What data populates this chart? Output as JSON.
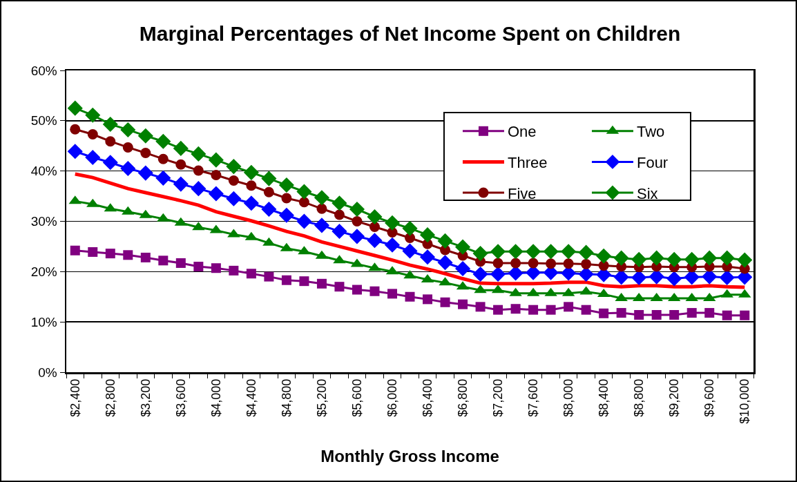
{
  "chart_data": {
    "type": "line",
    "title": "Marginal Percentages of Net Income Spent on Children",
    "xlabel": "Monthly Gross Income",
    "categories": [
      "$2,400",
      null,
      "$2,800",
      null,
      "$3,200",
      null,
      "$3,600",
      null,
      "$4,000",
      null,
      "$4,400",
      null,
      "$4,800",
      null,
      "$5,200",
      null,
      "$5,600",
      null,
      "$6,000",
      null,
      "$6,400",
      null,
      "$6,800",
      null,
      "$7,200",
      null,
      "$7,600",
      null,
      "$8,000",
      null,
      "$8,400",
      null,
      "$8,800",
      null,
      "$9,200",
      null,
      "$9,600",
      null,
      "$10,000"
    ],
    "ylim": [
      0,
      60
    ],
    "yticks": [
      {
        "value": 0,
        "label": "0%"
      },
      {
        "value": 10,
        "label": "10%"
      },
      {
        "value": 20,
        "label": "20%"
      },
      {
        "value": 30,
        "label": "30%"
      },
      {
        "value": 40,
        "label": "40%"
      },
      {
        "value": 50,
        "label": "50%"
      },
      {
        "value": 60,
        "label": "60%"
      }
    ],
    "grid": "y",
    "legend": "top right",
    "series": [
      {
        "name": "One",
        "color": "#800080",
        "marker": "square",
        "values": [
          24.2,
          23.9,
          23.6,
          23.3,
          22.8,
          22.2,
          21.7,
          21.0,
          20.7,
          20.2,
          19.6,
          19.0,
          18.3,
          18.1,
          17.6,
          17.0,
          16.4,
          16.1,
          15.6,
          15.0,
          14.5,
          13.9,
          13.5,
          13.0,
          12.4,
          12.6,
          12.4,
          12.4,
          13.0,
          12.4,
          11.7,
          11.8,
          11.4,
          11.4,
          11.4,
          11.8,
          11.8,
          11.3,
          11.3
        ]
      },
      {
        "name": "Two",
        "color": "#008000",
        "marker": "triangle",
        "values": [
          34.0,
          33.4,
          32.5,
          31.9,
          31.2,
          30.5,
          29.7,
          28.8,
          28.2,
          27.4,
          26.8,
          25.7,
          24.6,
          24.0,
          23.1,
          22.2,
          21.5,
          20.7,
          20.0,
          19.2,
          18.4,
          17.8,
          17.0,
          16.3,
          16.3,
          15.7,
          15.7,
          15.7,
          15.7,
          16.0,
          15.5,
          14.7,
          14.7,
          14.7,
          14.7,
          14.7,
          14.7,
          15.4,
          15.4
        ]
      },
      {
        "name": "Three",
        "color": "#ff0000",
        "marker": "none",
        "values": [
          39.4,
          38.7,
          37.6,
          36.5,
          35.7,
          34.9,
          34.1,
          33.2,
          31.9,
          31.0,
          30.1,
          29.1,
          28.0,
          27.1,
          25.9,
          25.0,
          24.1,
          23.2,
          22.3,
          21.3,
          20.5,
          19.6,
          18.6,
          17.7,
          17.6,
          17.6,
          17.6,
          17.7,
          17.9,
          17.9,
          17.2,
          17.0,
          17.2,
          17.2,
          17.0,
          17.0,
          17.2,
          17.0,
          16.9
        ]
      },
      {
        "name": "Four",
        "color": "#0000ff",
        "marker": "diamond",
        "values": [
          43.9,
          42.7,
          41.7,
          40.5,
          39.6,
          38.6,
          37.4,
          36.5,
          35.5,
          34.5,
          33.6,
          32.4,
          31.2,
          30.0,
          29.2,
          28.0,
          27.0,
          26.2,
          25.3,
          24.1,
          22.9,
          21.8,
          20.6,
          19.5,
          19.5,
          19.7,
          19.8,
          19.8,
          19.7,
          19.5,
          19.4,
          18.9,
          18.8,
          19.0,
          18.6,
          18.9,
          19.0,
          18.8,
          18.9
        ]
      },
      {
        "name": "Five",
        "color": "#800000",
        "marker": "circle",
        "values": [
          48.3,
          47.3,
          45.9,
          44.7,
          43.6,
          42.4,
          41.3,
          40.1,
          39.2,
          38.1,
          37.1,
          35.8,
          34.6,
          33.8,
          32.5,
          31.3,
          30.0,
          28.9,
          27.8,
          26.7,
          25.5,
          24.3,
          23.2,
          22.0,
          21.7,
          21.7,
          21.7,
          21.6,
          21.6,
          21.5,
          21.2,
          21.0,
          20.9,
          21.0,
          20.9,
          20.9,
          21.0,
          21.0,
          20.6
        ]
      },
      {
        "name": "Six",
        "color": "#008000",
        "marker": "diamond",
        "values": [
          52.5,
          51.1,
          49.3,
          48.2,
          47.0,
          45.9,
          44.5,
          43.4,
          42.2,
          40.9,
          39.7,
          38.5,
          37.2,
          35.9,
          34.7,
          33.6,
          32.4,
          30.9,
          29.7,
          28.6,
          27.3,
          26.1,
          24.9,
          23.6,
          24.0,
          24.0,
          24.0,
          24.0,
          24.0,
          23.8,
          23.1,
          22.7,
          22.4,
          22.7,
          22.4,
          22.4,
          22.7,
          22.7,
          22.3
        ]
      }
    ]
  }
}
